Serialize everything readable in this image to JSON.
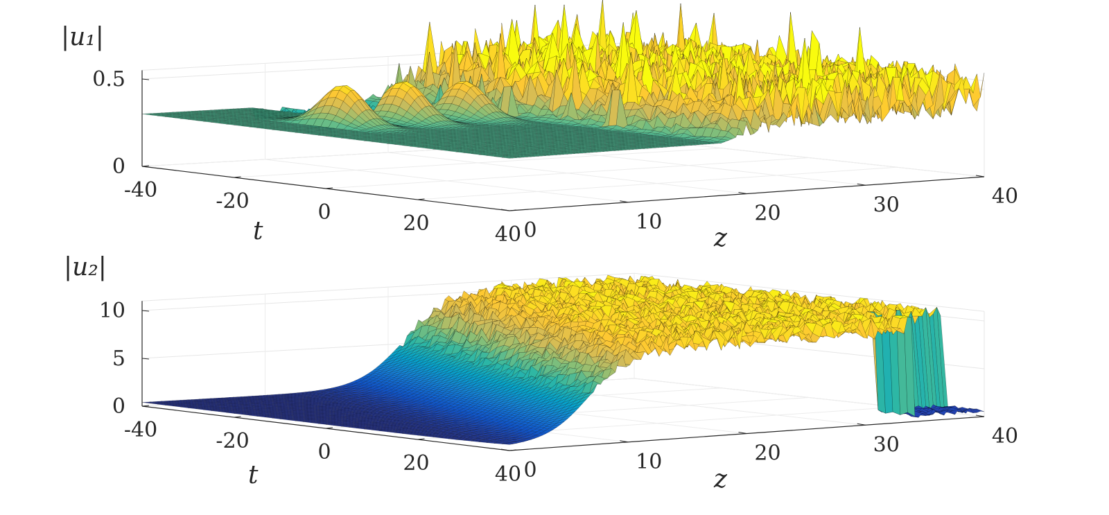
{
  "chart_data": [
    {
      "type": "surface",
      "title": "|u₁|",
      "xlabel": "t",
      "ylabel": "z",
      "x_ticks": [
        "-40",
        "-20",
        "0",
        "20",
        "40"
      ],
      "y_ticks": [
        "0",
        "10",
        "20",
        "30",
        "40"
      ],
      "z_ticks": [
        "0",
        "0.5"
      ],
      "xlim": [
        -40,
        40
      ],
      "ylim": [
        0,
        40
      ],
      "zlim": [
        0,
        0.55
      ],
      "background_level": 0.3,
      "grid": true,
      "colormap": [
        "#352a87",
        "#0f5cdd",
        "#1481d6",
        "#06a4ca",
        "#2eb7a4",
        "#87bf77",
        "#d1bb59",
        "#fec832",
        "#f9fb0e"
      ],
      "peaks": [
        {
          "t": -12,
          "z": 6,
          "height": 0.53
        },
        {
          "t": -12,
          "z": 11,
          "height": 0.53
        },
        {
          "t": -12,
          "z": 16,
          "height": 0.51
        },
        {
          "t": -12,
          "z": 21,
          "height": 0.5
        },
        {
          "t": 0,
          "z": 21,
          "height": 0.5
        },
        {
          "t": 12,
          "z": 21,
          "height": 0.45
        },
        {
          "t": 24,
          "z": 21,
          "height": 0.42
        },
        {
          "t": 34,
          "z": 21,
          "height": 0.4
        }
      ]
    },
    {
      "type": "surface",
      "title": "|u₂|",
      "xlabel": "t",
      "ylabel": "z",
      "x_ticks": [
        "-40",
        "-20",
        "0",
        "20",
        "40"
      ],
      "y_ticks": [
        "0",
        "10",
        "20",
        "30",
        "40"
      ],
      "z_ticks": [
        "0",
        "5",
        "10"
      ],
      "xlim": [
        -40,
        40
      ],
      "ylim": [
        0,
        40
      ],
      "zlim": [
        0,
        11
      ],
      "background_level": 0.4,
      "saturation_level": 10,
      "grid": true,
      "colormap": [
        "#352a87",
        "#0f5cdd",
        "#1481d6",
        "#06a4ca",
        "#2eb7a4",
        "#87bf77",
        "#d1bb59",
        "#fec832",
        "#f9fb0e"
      ]
    }
  ]
}
